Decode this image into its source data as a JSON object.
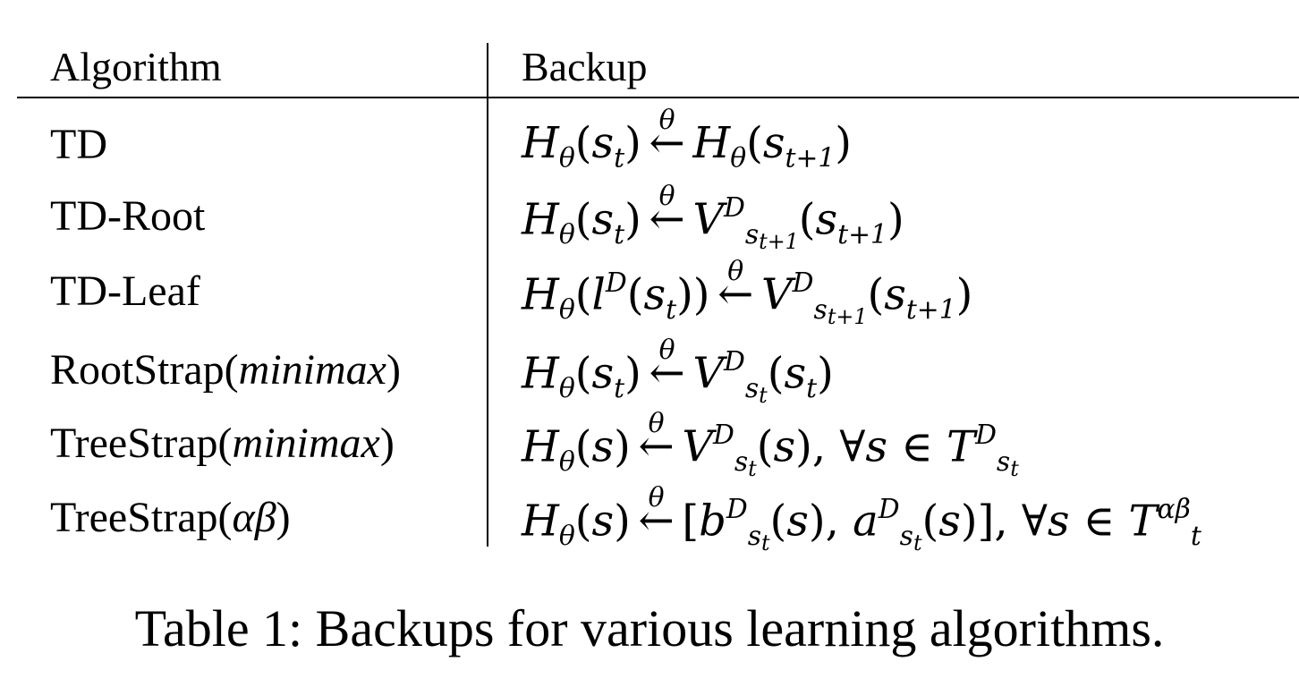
{
  "table": {
    "headers": {
      "algorithm": "Algorithm",
      "backup": "Backup"
    },
    "rows": [
      {
        "algorithm": "TD",
        "algorithm_italic": "",
        "algorithm_close": ""
      },
      {
        "algorithm": "TD-Root",
        "algorithm_italic": "",
        "algorithm_close": ""
      },
      {
        "algorithm": "TD-Leaf",
        "algorithm_italic": "",
        "algorithm_close": ""
      },
      {
        "algorithm": "RootStrap(",
        "algorithm_italic": "minimax",
        "algorithm_close": ")"
      },
      {
        "algorithm": "TreeStrap(",
        "algorithm_italic": "minimax",
        "algorithm_close": ")"
      },
      {
        "algorithm": "TreeStrap(",
        "algorithm_italic": "αβ",
        "algorithm_close": ")"
      }
    ],
    "backups": {
      "H": "H",
      "theta": "θ",
      "s": "s",
      "t": "t",
      "t1": "t+1",
      "V": "V",
      "D": "D",
      "l": "l",
      "T": "T",
      "b": "b",
      "a": "a",
      "forall": "∀",
      "in": "∈",
      "arrow": "←",
      "ab": "αβ"
    }
  },
  "caption": "Table 1: Backups for various learning algorithms."
}
